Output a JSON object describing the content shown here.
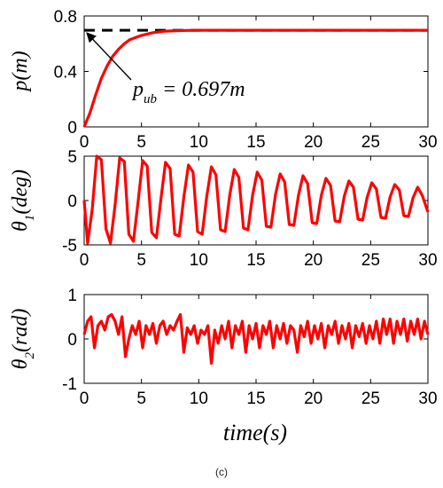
{
  "figure": {
    "caption": "(c)",
    "xlabel": "time(s)"
  },
  "chart_data": [
    {
      "type": "line",
      "ylabel": {
        "main": "p",
        "sub": "",
        "unit": "(m)"
      },
      "xlim": [
        0,
        30
      ],
      "ylim": [
        0,
        0.8
      ],
      "xticks": [
        "0",
        "5",
        "10",
        "15",
        "20",
        "25",
        "30"
      ],
      "yticks": [
        "0",
        "0.4",
        "0.8"
      ],
      "ytick_values": [
        0,
        0.4,
        0.8
      ],
      "annotation": {
        "main": "p",
        "sub": "ub",
        "text": " = 0.697m",
        "points_to": [
          0,
          0.697
        ]
      },
      "series": [
        {
          "style": "dashed",
          "color": "#000000",
          "x": [
            0,
            30
          ],
          "y": [
            0.697,
            0.697
          ]
        },
        {
          "style": "solid",
          "color": "#ff0000",
          "x": [
            0,
            0.5,
            1,
            1.5,
            2,
            2.5,
            3,
            3.5,
            4,
            5,
            6,
            7,
            8,
            9,
            10,
            15,
            20,
            25,
            30
          ],
          "y": [
            0,
            0.1,
            0.23,
            0.35,
            0.44,
            0.51,
            0.56,
            0.6,
            0.63,
            0.66,
            0.68,
            0.69,
            0.694,
            0.696,
            0.697,
            0.697,
            0.697,
            0.697,
            0.697
          ]
        }
      ]
    },
    {
      "type": "line",
      "ylabel": {
        "main": "θ",
        "sub": "1",
        "unit": "(deg)"
      },
      "xlim": [
        0,
        30
      ],
      "ylim": [
        -5,
        5
      ],
      "xticks": [
        "0",
        "5",
        "10",
        "15",
        "20",
        "25",
        "30"
      ],
      "yticks": [
        "-5",
        "0",
        "5"
      ],
      "ytick_values": [
        -5,
        0,
        5
      ],
      "series": [
        {
          "style": "solid",
          "color": "#ff0000",
          "x": [
            0,
            0.3,
            0.7,
            1.1,
            1.5,
            1.9,
            2.3,
            2.7,
            3.1,
            3.5,
            3.9,
            4.3,
            4.7,
            5.1,
            5.5,
            5.9,
            6.3,
            6.7,
            7.1,
            7.5,
            7.9,
            8.3,
            8.7,
            9.1,
            9.5,
            9.9,
            10.3,
            10.7,
            11.1,
            11.5,
            11.9,
            12.3,
            12.7,
            13.1,
            13.5,
            13.9,
            14.3,
            14.7,
            15.1,
            15.5,
            15.9,
            16.3,
            16.7,
            17.1,
            17.5,
            17.9,
            18.3,
            18.7,
            19.1,
            19.5,
            19.9,
            20.3,
            20.7,
            21.1,
            21.5,
            21.9,
            22.3,
            22.7,
            23.1,
            23.5,
            23.9,
            24.3,
            24.7,
            25.1,
            25.5,
            25.9,
            26.3,
            26.7,
            27.1,
            27.5,
            27.9,
            28.3,
            28.7,
            29.1,
            29.5,
            30
          ],
          "y": [
            0,
            -4.8,
            -1,
            5,
            4.6,
            -3.2,
            -4.8,
            -0.5,
            4.8,
            4.4,
            -3.8,
            -4.6,
            -0.2,
            4.5,
            3.9,
            -3.6,
            -4.2,
            0.2,
            4.3,
            3.6,
            -3.8,
            -4,
            0.4,
            4,
            3.2,
            -3.5,
            -3.8,
            0.5,
            3.8,
            2.9,
            -3.3,
            -3.5,
            0.6,
            3.5,
            2.6,
            -3.1,
            -3.3,
            0.6,
            3.2,
            2.3,
            -2.9,
            -3,
            0.7,
            3,
            2.1,
            -2.7,
            -2.8,
            0.6,
            2.8,
            1.9,
            -2.5,
            -2.6,
            0.6,
            2.5,
            1.7,
            -2.3,
            -2.4,
            0.5,
            2.2,
            1.5,
            -2.1,
            -2.2,
            0.4,
            2,
            1.3,
            -1.9,
            -2,
            0.4,
            1.8,
            1.2,
            -1.7,
            -1.8,
            0.3,
            1.5,
            0.6,
            -1.3
          ]
        }
      ]
    },
    {
      "type": "line",
      "ylabel": {
        "main": "θ",
        "sub": "2",
        "unit": "(rad)"
      },
      "xlim": [
        0,
        30
      ],
      "ylim": [
        -1,
        1
      ],
      "xticks": [
        "0",
        "5",
        "10",
        "15",
        "20",
        "25",
        "30"
      ],
      "yticks": [
        "-1",
        "0",
        "1"
      ],
      "ytick_values": [
        -1,
        0,
        1
      ],
      "series": [
        {
          "style": "solid",
          "color": "#ff0000",
          "x": [
            0,
            0.3,
            0.6,
            0.9,
            1.2,
            1.5,
            1.8,
            2.1,
            2.4,
            2.7,
            3,
            3.3,
            3.6,
            3.9,
            4.2,
            4.5,
            4.8,
            5.1,
            5.4,
            5.7,
            6,
            6.3,
            6.6,
            6.9,
            7.2,
            7.5,
            7.8,
            8.1,
            8.4,
            8.7,
            9,
            9.3,
            9.6,
            9.9,
            10.2,
            10.5,
            10.8,
            11.1,
            11.4,
            11.7,
            12,
            12.3,
            12.6,
            12.9,
            13.2,
            13.5,
            13.8,
            14.1,
            14.4,
            14.7,
            15,
            15.3,
            15.6,
            15.9,
            16.2,
            16.5,
            16.8,
            17.1,
            17.4,
            17.7,
            18,
            18.3,
            18.6,
            18.9,
            19.2,
            19.5,
            19.8,
            20.1,
            20.4,
            20.7,
            21,
            21.3,
            21.6,
            21.9,
            22.2,
            22.5,
            22.8,
            23.1,
            23.4,
            23.7,
            24,
            24.3,
            24.6,
            24.9,
            25.2,
            25.5,
            25.8,
            26.1,
            26.4,
            26.7,
            27,
            27.3,
            27.6,
            27.9,
            28.2,
            28.5,
            28.8,
            29.1,
            29.4,
            29.7,
            30
          ],
          "y": [
            0.1,
            0.4,
            0.5,
            -0.2,
            0.3,
            0.4,
            0.2,
            0.5,
            0.55,
            0.4,
            0.1,
            0.5,
            -0.4,
            0,
            0.3,
            0.1,
            0.4,
            -0.2,
            0.3,
            0.1,
            0.35,
            -0.1,
            0.3,
            0.4,
            0.1,
            0.3,
            0.2,
            0.4,
            0.55,
            -0.3,
            0.25,
            0.1,
            0.3,
            -0.1,
            0.2,
            0.1,
            0.3,
            -0.55,
            0.2,
            -0.1,
            0.3,
            0,
            0.4,
            -0.2,
            0.3,
            0.1,
            0.4,
            -0.3,
            0.3,
            0,
            0.35,
            -0.2,
            0.3,
            0.1,
            0.4,
            -0.2,
            0.3,
            0,
            0.35,
            -0.1,
            0.3,
            0.2,
            -0.3,
            0.3,
            0.05,
            0.4,
            -0.1,
            0.3,
            0,
            0.35,
            -0.2,
            0.3,
            0.1,
            0.4,
            -0.1,
            0.3,
            0,
            0.35,
            -0.2,
            0.3,
            0.05,
            0.35,
            -0.1,
            0.3,
            0,
            0.4,
            -0.1,
            0.45,
            0.1,
            0.45,
            -0.1,
            0.4,
            0.1,
            0.45,
            -0.05,
            0.4,
            0.1,
            0.45,
            0,
            0.4,
            0.1
          ]
        }
      ]
    }
  ]
}
